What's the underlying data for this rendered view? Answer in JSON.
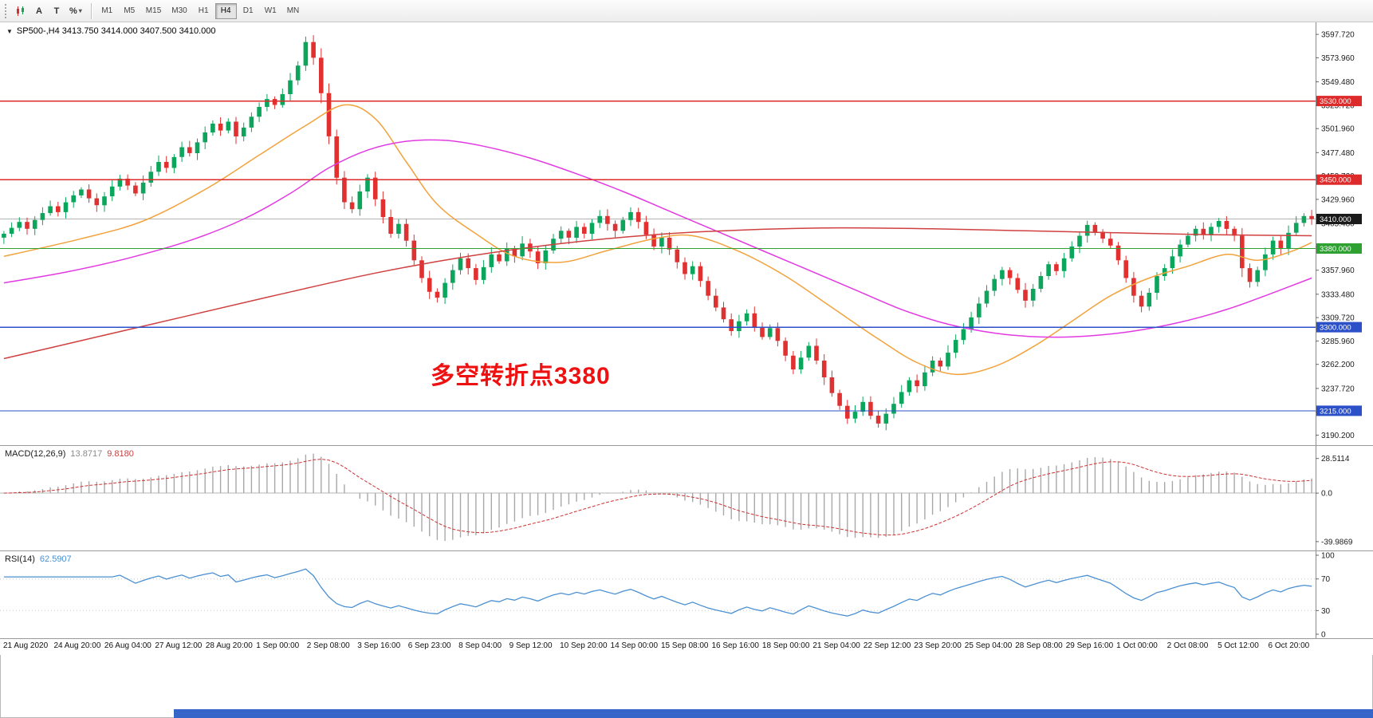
{
  "page": {
    "bottom_strip_color": "#3565c8"
  },
  "icons": {
    "collapse_triangle": "▼",
    "dropdown_arrow": "▾"
  },
  "toolbar": {
    "tools": [
      {
        "name": "chart-style-tool",
        "label": ""
      },
      {
        "name": "text-label-tool",
        "label": "A"
      },
      {
        "name": "text-tool",
        "label": "T"
      },
      {
        "name": "scale-tool",
        "label": "%"
      }
    ],
    "timeframes": [
      "M1",
      "M5",
      "M15",
      "M30",
      "H1",
      "H4",
      "D1",
      "W1",
      "MN"
    ],
    "active_timeframe": "H4"
  },
  "main": {
    "title": "SP500-,H4 3413.750 3414.000 3407.500 3410.000",
    "annotation": {
      "text": "多空转折点3380",
      "color": "#ee1111"
    }
  },
  "chart_data": {
    "type": "candlestick",
    "symbol": "SP500-",
    "timeframe": "H4",
    "ohlc_display": {
      "open": "3413.750",
      "high": "3414.000",
      "low": "3407.500",
      "close": "3410.000"
    },
    "price_axis": {
      "min": 3180,
      "max": 3610,
      "ticks": [
        "3597.720",
        "3573.960",
        "3549.480",
        "3525.720",
        "3501.960",
        "3477.480",
        "3453.720",
        "3429.960",
        "3405.480",
        "3381.720",
        "3357.960",
        "3333.480",
        "3309.720",
        "3285.960",
        "3262.200",
        "3237.720",
        "3213.960",
        "3190.200"
      ]
    },
    "candles_close": [
      3395,
      3401,
      3407,
      3400,
      3409,
      3416,
      3423,
      3417,
      3427,
      3434,
      3440,
      3431,
      3424,
      3433,
      3443,
      3451,
      3444,
      3436,
      3447,
      3458,
      3468,
      3462,
      3473,
      3483,
      3477,
      3488,
      3498,
      3507,
      3500,
      3509,
      3494,
      3503,
      3514,
      3524,
      3532,
      3526,
      3537,
      3551,
      3566,
      3590,
      3574,
      3538,
      3494,
      3452,
      3427,
      3420,
      3438,
      3452,
      3430,
      3412,
      3395,
      3405,
      3388,
      3368,
      3350,
      3336,
      3330,
      3345,
      3358,
      3370,
      3360,
      3348,
      3361,
      3374,
      3367,
      3380,
      3372,
      3385,
      3377,
      3365,
      3378,
      3390,
      3398,
      3391,
      3402,
      3395,
      3406,
      3413,
      3405,
      3398,
      3409,
      3417,
      3407,
      3394,
      3382,
      3391,
      3379,
      3366,
      3354,
      3362,
      3347,
      3332,
      3320,
      3308,
      3296,
      3306,
      3314,
      3300,
      3290,
      3299,
      3286,
      3271,
      3257,
      3269,
      3281,
      3266,
      3249,
      3233,
      3220,
      3207,
      3214,
      3224,
      3210,
      3202,
      3212,
      3222,
      3234,
      3246,
      3240,
      3254,
      3266,
      3260,
      3274,
      3287,
      3298,
      3310,
      3324,
      3337,
      3349,
      3358,
      3350,
      3338,
      3327,
      3339,
      3352,
      3364,
      3357,
      3370,
      3382,
      3393,
      3404,
      3397,
      3390,
      3383,
      3368,
      3350,
      3332,
      3321,
      3335,
      3352,
      3360,
      3372,
      3384,
      3393,
      3400,
      3394,
      3402,
      3408,
      3400,
      3393,
      3360,
      3346,
      3358,
      3374,
      3388,
      3380,
      3396,
      3406,
      3413,
      3410
    ],
    "ma_lines": [
      {
        "name": "ma-fast-orange",
        "color": "#f2a23c",
        "points": [
          [
            0,
            3372
          ],
          [
            10,
            3390
          ],
          [
            18,
            3408
          ],
          [
            26,
            3440
          ],
          [
            33,
            3475
          ],
          [
            39,
            3505
          ],
          [
            44,
            3526
          ],
          [
            48,
            3512
          ],
          [
            52,
            3468
          ],
          [
            56,
            3425
          ],
          [
            61,
            3395
          ],
          [
            66,
            3372
          ],
          [
            72,
            3366
          ],
          [
            78,
            3378
          ],
          [
            84,
            3390
          ],
          [
            89,
            3393
          ],
          [
            95,
            3377
          ],
          [
            101,
            3352
          ],
          [
            107,
            3320
          ],
          [
            113,
            3288
          ],
          [
            118,
            3264
          ],
          [
            123,
            3252
          ],
          [
            128,
            3260
          ],
          [
            133,
            3280
          ],
          [
            138,
            3306
          ],
          [
            143,
            3332
          ],
          [
            148,
            3350
          ],
          [
            153,
            3362
          ],
          [
            158,
            3374
          ],
          [
            162,
            3368
          ],
          [
            166,
            3376
          ],
          [
            169,
            3386
          ]
        ]
      },
      {
        "name": "ma-mid-magenta",
        "color": "#e23ae2",
        "points": [
          [
            0,
            3345
          ],
          [
            8,
            3356
          ],
          [
            16,
            3370
          ],
          [
            24,
            3388
          ],
          [
            31,
            3410
          ],
          [
            37,
            3436
          ],
          [
            42,
            3462
          ],
          [
            47,
            3480
          ],
          [
            52,
            3489
          ],
          [
            57,
            3490
          ],
          [
            62,
            3484
          ],
          [
            68,
            3472
          ],
          [
            74,
            3456
          ],
          [
            80,
            3438
          ],
          [
            86,
            3418
          ],
          [
            92,
            3398
          ],
          [
            98,
            3378
          ],
          [
            104,
            3358
          ],
          [
            110,
            3338
          ],
          [
            116,
            3318
          ],
          [
            122,
            3303
          ],
          [
            128,
            3294
          ],
          [
            134,
            3290
          ],
          [
            140,
            3291
          ],
          [
            146,
            3296
          ],
          [
            152,
            3305
          ],
          [
            158,
            3318
          ],
          [
            163,
            3332
          ],
          [
            169,
            3350
          ]
        ]
      },
      {
        "name": "ma-slow-red",
        "color": "#d04040",
        "points": [
          [
            0,
            3268
          ],
          [
            12,
            3290
          ],
          [
            24,
            3312
          ],
          [
            36,
            3334
          ],
          [
            48,
            3355
          ],
          [
            60,
            3372
          ],
          [
            72,
            3385
          ],
          [
            84,
            3394
          ],
          [
            96,
            3399
          ],
          [
            108,
            3401
          ],
          [
            120,
            3400
          ],
          [
            132,
            3398
          ],
          [
            144,
            3396
          ],
          [
            156,
            3394
          ],
          [
            169,
            3393
          ]
        ]
      }
    ],
    "hlines": [
      {
        "price": 3530,
        "label": "3530.000",
        "color": "#dd2a2a"
      },
      {
        "price": 3450,
        "label": "3450.000",
        "color": "#dd2a2a"
      },
      {
        "price": 3380,
        "label": "3380.000",
        "color": "#2fa133"
      },
      {
        "price": 3300,
        "label": "3300.000",
        "color": "#2b50c8"
      },
      {
        "price": 3215,
        "label": "3215.000",
        "color": "#2b50c8"
      }
    ],
    "current_price": {
      "value": 3410.0,
      "label": "3410.000"
    },
    "macd": {
      "name": "MACD(12,26,9)",
      "value_main": "13.8717",
      "value_signal": "9.8180",
      "params": [
        12,
        26,
        9
      ],
      "y_ticks": [
        "28.5114",
        "0.0",
        "-39.9869"
      ]
    },
    "rsi": {
      "name": "RSI(14)",
      "value": "62.5907",
      "period": 14,
      "levels": [
        70,
        30
      ],
      "y_ticks": [
        "100",
        "70",
        "30",
        "0"
      ]
    },
    "x_labels": [
      "21 Aug 2020",
      "24 Aug 20:00",
      "26 Aug 04:00",
      "27 Aug 12:00",
      "28 Aug 20:00",
      "1 Sep 00:00",
      "2 Sep 08:00",
      "3 Sep 16:00",
      "6 Sep 23:00",
      "8 Sep 04:00",
      "9 Sep 12:00",
      "10 Sep 20:00",
      "14 Sep 00:00",
      "15 Sep 08:00",
      "16 Sep 16:00",
      "18 Sep 00:00",
      "21 Sep 04:00",
      "22 Sep 12:00",
      "23 Sep 20:00",
      "25 Sep 04:00",
      "28 Sep 08:00",
      "29 Sep 16:00",
      "1 Oct 00:00",
      "2 Oct 08:00",
      "5 Oct 12:00",
      "6 Oct 20:00"
    ],
    "colors": {
      "up": "#0ba55c",
      "down": "#e03030",
      "macd_hist": "#a8a8a8",
      "macd_signal": "#cc3333",
      "rsi": "#4a90d2"
    }
  }
}
